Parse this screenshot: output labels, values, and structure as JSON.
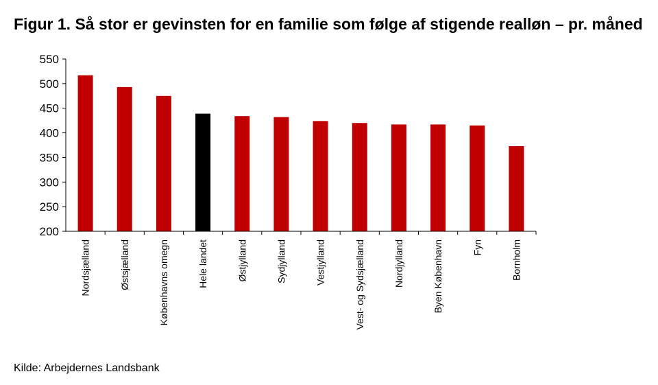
{
  "title": "Figur 1. Så stor er gevinsten for en familie som følge af stigende realløn – pr. måned",
  "source": "Kilde: Arbejdernes Landsbank",
  "colors": {
    "bar": "#c00000",
    "highlight": "#000000",
    "axis": "#000000"
  },
  "chart_data": {
    "type": "bar",
    "title": "Figur 1. Så stor er gevinsten for en familie som følge af stigende realløn – pr. måned",
    "xlabel": "",
    "ylabel": "",
    "ylim": [
      200,
      550
    ],
    "yticks": [
      200,
      250,
      300,
      350,
      400,
      450,
      500,
      550
    ],
    "grid": false,
    "categories": [
      "Nordsjælland",
      "Østsjælland",
      "Københavns omegn",
      "Hele landet",
      "Østjylland",
      "Sydjylland",
      "Vestjylland",
      "Vest- og Sydsjælland",
      "Nordjylland",
      "Byen København",
      "Fyn",
      "Bornholm"
    ],
    "values": [
      517,
      493,
      475,
      439,
      434,
      432,
      424,
      420,
      417,
      417,
      415,
      373
    ],
    "highlight": "Hele landet"
  }
}
